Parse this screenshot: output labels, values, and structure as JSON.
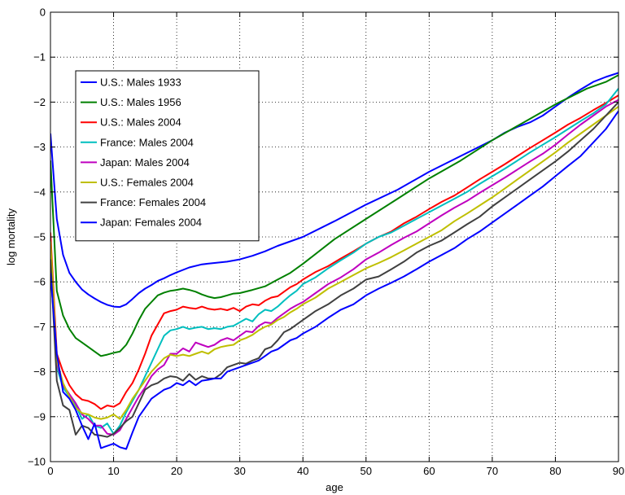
{
  "chart_data": {
    "type": "line",
    "title": "",
    "xlabel": "age",
    "ylabel": "log mortality",
    "xlim": [
      0,
      90
    ],
    "ylim": [
      -10,
      0
    ],
    "xticks": [
      0,
      10,
      20,
      30,
      40,
      50,
      60,
      70,
      80,
      90
    ],
    "yticks": [
      0,
      -1,
      -2,
      -3,
      -4,
      -5,
      -6,
      -7,
      -8,
      -9,
      -10
    ],
    "grid": true,
    "legend_position": "top-left",
    "series": [
      {
        "name": "U.S.: Males 1933",
        "color": "#0000ff",
        "x": [
          0,
          1,
          2,
          3,
          4,
          5,
          6,
          7,
          8,
          9,
          10,
          11,
          12,
          13,
          14,
          15,
          16,
          17,
          18,
          19,
          20,
          22,
          24,
          26,
          28,
          30,
          32,
          34,
          36,
          38,
          40,
          45,
          50,
          55,
          60,
          65,
          70,
          72,
          74,
          76,
          78,
          80,
          82,
          84,
          86,
          88,
          90
        ],
        "y": [
          -2.7,
          -4.6,
          -5.4,
          -5.8,
          -6.0,
          -6.17,
          -6.28,
          -6.37,
          -6.45,
          -6.51,
          -6.55,
          -6.56,
          -6.5,
          -6.38,
          -6.25,
          -6.15,
          -6.07,
          -5.98,
          -5.92,
          -5.85,
          -5.79,
          -5.68,
          -5.61,
          -5.58,
          -5.55,
          -5.5,
          -5.42,
          -5.32,
          -5.2,
          -5.1,
          -5.0,
          -4.65,
          -4.28,
          -3.95,
          -3.55,
          -3.2,
          -2.85,
          -2.68,
          -2.55,
          -2.45,
          -2.3,
          -2.1,
          -1.9,
          -1.72,
          -1.55,
          -1.44,
          -1.35
        ]
      },
      {
        "name": "U.S.: Males 1956",
        "color": "#008000",
        "x": [
          0,
          1,
          2,
          3,
          4,
          5,
          6,
          7,
          8,
          9,
          10,
          11,
          12,
          13,
          14,
          15,
          16,
          17,
          18,
          19,
          20,
          21,
          22,
          23,
          24,
          25,
          26,
          27,
          28,
          29,
          30,
          32,
          34,
          36,
          38,
          40,
          45,
          50,
          55,
          60,
          65,
          70,
          75,
          80,
          85,
          88,
          90
        ],
        "y": [
          -3.3,
          -6.2,
          -6.75,
          -7.05,
          -7.25,
          -7.35,
          -7.45,
          -7.55,
          -7.65,
          -7.62,
          -7.58,
          -7.55,
          -7.4,
          -7.15,
          -6.85,
          -6.6,
          -6.45,
          -6.3,
          -6.24,
          -6.2,
          -6.18,
          -6.15,
          -6.18,
          -6.22,
          -6.28,
          -6.33,
          -6.36,
          -6.34,
          -6.3,
          -6.26,
          -6.25,
          -6.18,
          -6.1,
          -5.95,
          -5.8,
          -5.6,
          -5.05,
          -4.6,
          -4.15,
          -3.7,
          -3.3,
          -2.85,
          -2.45,
          -2.05,
          -1.7,
          -1.55,
          -1.4
        ]
      },
      {
        "name": "U.S.: Males 2004",
        "color": "#ff0000",
        "x": [
          0,
          1,
          2,
          3,
          4,
          5,
          6,
          7,
          8,
          9,
          10,
          11,
          12,
          13,
          14,
          15,
          16,
          17,
          18,
          19,
          20,
          21,
          22,
          23,
          24,
          25,
          26,
          27,
          28,
          29,
          30,
          31,
          32,
          33,
          34,
          35,
          36,
          37,
          38,
          39,
          40,
          42,
          44,
          46,
          48,
          50,
          52,
          54,
          56,
          58,
          60,
          62,
          64,
          66,
          68,
          70,
          72,
          74,
          76,
          78,
          80,
          82,
          84,
          86,
          88,
          90
        ],
        "y": [
          -4.9,
          -7.6,
          -8.0,
          -8.3,
          -8.5,
          -8.62,
          -8.65,
          -8.72,
          -8.83,
          -8.75,
          -8.78,
          -8.7,
          -8.45,
          -8.25,
          -7.95,
          -7.6,
          -7.2,
          -6.95,
          -6.7,
          -6.65,
          -6.62,
          -6.55,
          -6.58,
          -6.6,
          -6.55,
          -6.6,
          -6.62,
          -6.6,
          -6.63,
          -6.58,
          -6.65,
          -6.55,
          -6.5,
          -6.52,
          -6.42,
          -6.35,
          -6.32,
          -6.22,
          -6.12,
          -6.05,
          -5.95,
          -5.78,
          -5.65,
          -5.48,
          -5.32,
          -5.15,
          -5.0,
          -4.88,
          -4.7,
          -4.55,
          -4.38,
          -4.22,
          -4.08,
          -3.9,
          -3.72,
          -3.55,
          -3.38,
          -3.2,
          -3.02,
          -2.85,
          -2.68,
          -2.5,
          -2.35,
          -2.18,
          -2.02,
          -1.85
        ]
      },
      {
        "name": "France: Males 2004",
        "color": "#00bfbf",
        "x": [
          0,
          1,
          2,
          3,
          4,
          5,
          6,
          7,
          8,
          9,
          10,
          11,
          12,
          13,
          14,
          15,
          16,
          17,
          18,
          19,
          20,
          21,
          22,
          23,
          24,
          25,
          26,
          27,
          28,
          29,
          30,
          31,
          32,
          33,
          34,
          35,
          36,
          37,
          38,
          39,
          40,
          42,
          44,
          46,
          48,
          50,
          52,
          54,
          56,
          58,
          60,
          62,
          64,
          66,
          68,
          70,
          72,
          74,
          76,
          78,
          80,
          82,
          84,
          86,
          88,
          90
        ],
        "y": [
          -5.2,
          -7.9,
          -8.35,
          -8.55,
          -8.75,
          -9.05,
          -8.95,
          -9.2,
          -9.25,
          -9.15,
          -9.38,
          -9.2,
          -8.9,
          -8.65,
          -8.4,
          -8.1,
          -7.8,
          -7.5,
          -7.2,
          -7.08,
          -7.05,
          -7.0,
          -7.05,
          -7.02,
          -7.0,
          -7.05,
          -7.03,
          -7.05,
          -7.0,
          -6.98,
          -6.9,
          -6.82,
          -6.88,
          -6.72,
          -6.62,
          -6.65,
          -6.55,
          -6.42,
          -6.3,
          -6.2,
          -6.05,
          -5.9,
          -5.7,
          -5.52,
          -5.35,
          -5.15,
          -5.0,
          -4.9,
          -4.75,
          -4.6,
          -4.45,
          -4.3,
          -4.15,
          -4.0,
          -3.82,
          -3.65,
          -3.48,
          -3.3,
          -3.12,
          -2.95,
          -2.78,
          -2.6,
          -2.42,
          -2.25,
          -2.05,
          -1.7
        ]
      },
      {
        "name": "Japan: Males 2004",
        "color": "#bf00bf",
        "x": [
          0,
          1,
          2,
          3,
          4,
          5,
          6,
          7,
          8,
          9,
          10,
          11,
          12,
          13,
          14,
          15,
          16,
          17,
          18,
          19,
          20,
          21,
          22,
          23,
          24,
          25,
          26,
          27,
          28,
          29,
          30,
          31,
          32,
          33,
          34,
          35,
          36,
          37,
          38,
          39,
          40,
          42,
          44,
          46,
          48,
          50,
          52,
          54,
          56,
          58,
          60,
          62,
          64,
          66,
          68,
          70,
          72,
          74,
          76,
          78,
          80,
          82,
          84,
          86,
          88,
          90
        ],
        "y": [
          -5.3,
          -7.8,
          -8.3,
          -8.5,
          -8.7,
          -8.95,
          -9.05,
          -9.2,
          -9.2,
          -9.38,
          -9.4,
          -9.3,
          -9.05,
          -8.8,
          -8.55,
          -8.35,
          -8.1,
          -7.95,
          -7.85,
          -7.6,
          -7.6,
          -7.48,
          -7.55,
          -7.35,
          -7.4,
          -7.45,
          -7.4,
          -7.3,
          -7.25,
          -7.3,
          -7.2,
          -7.1,
          -7.12,
          -6.98,
          -6.9,
          -6.92,
          -6.8,
          -6.7,
          -6.6,
          -6.52,
          -6.45,
          -6.25,
          -6.05,
          -5.9,
          -5.72,
          -5.5,
          -5.35,
          -5.18,
          -5.02,
          -4.88,
          -4.7,
          -4.52,
          -4.35,
          -4.2,
          -4.02,
          -3.85,
          -3.68,
          -3.5,
          -3.32,
          -3.15,
          -2.95,
          -2.72,
          -2.5,
          -2.3,
          -2.1,
          -1.95
        ]
      },
      {
        "name": "U.S.: Females 2004",
        "color": "#bfbf00",
        "x": [
          0,
          1,
          2,
          3,
          4,
          5,
          6,
          7,
          8,
          9,
          10,
          11,
          12,
          13,
          14,
          15,
          16,
          17,
          18,
          19,
          20,
          21,
          22,
          23,
          24,
          25,
          26,
          27,
          28,
          29,
          30,
          31,
          32,
          33,
          34,
          35,
          36,
          37,
          38,
          39,
          40,
          42,
          44,
          46,
          48,
          50,
          52,
          54,
          56,
          58,
          60,
          62,
          64,
          66,
          68,
          70,
          72,
          74,
          76,
          78,
          80,
          82,
          84,
          86,
          88,
          90
        ],
        "y": [
          -5.1,
          -7.75,
          -8.25,
          -8.55,
          -8.8,
          -8.92,
          -8.95,
          -9.02,
          -9.05,
          -9.02,
          -8.95,
          -9.05,
          -8.85,
          -8.6,
          -8.4,
          -8.2,
          -8.0,
          -7.85,
          -7.7,
          -7.62,
          -7.65,
          -7.62,
          -7.65,
          -7.6,
          -7.55,
          -7.6,
          -7.5,
          -7.45,
          -7.42,
          -7.4,
          -7.3,
          -7.25,
          -7.18,
          -7.08,
          -7.0,
          -6.95,
          -6.85,
          -6.78,
          -6.68,
          -6.6,
          -6.5,
          -6.35,
          -6.15,
          -6.0,
          -5.85,
          -5.7,
          -5.58,
          -5.45,
          -5.3,
          -5.15,
          -5.0,
          -4.85,
          -4.65,
          -4.48,
          -4.3,
          -4.12,
          -3.92,
          -3.72,
          -3.52,
          -3.32,
          -3.12,
          -2.9,
          -2.7,
          -2.5,
          -2.3,
          -2.1
        ]
      },
      {
        "name": "France: Females 2004",
        "color": "#404040",
        "x": [
          0,
          1,
          2,
          3,
          4,
          5,
          6,
          7,
          8,
          9,
          10,
          11,
          12,
          13,
          14,
          15,
          16,
          17,
          18,
          19,
          20,
          21,
          22,
          23,
          24,
          25,
          26,
          27,
          28,
          29,
          30,
          31,
          32,
          33,
          34,
          35,
          36,
          37,
          38,
          39,
          40,
          42,
          44,
          46,
          48,
          50,
          52,
          54,
          56,
          58,
          60,
          62,
          64,
          66,
          68,
          70,
          72,
          74,
          76,
          78,
          80,
          82,
          84,
          86,
          88,
          90
        ],
        "y": [
          -5.5,
          -8.2,
          -8.75,
          -8.85,
          -9.4,
          -9.2,
          -9.25,
          -9.4,
          -9.42,
          -9.45,
          -9.38,
          -9.25,
          -9.1,
          -9.0,
          -8.7,
          -8.4,
          -8.3,
          -8.25,
          -8.15,
          -8.1,
          -8.12,
          -8.2,
          -8.05,
          -8.18,
          -8.1,
          -8.15,
          -8.15,
          -8.05,
          -7.9,
          -7.85,
          -7.8,
          -7.82,
          -7.75,
          -7.7,
          -7.5,
          -7.45,
          -7.3,
          -7.12,
          -7.05,
          -6.95,
          -6.85,
          -6.65,
          -6.5,
          -6.3,
          -6.15,
          -5.95,
          -5.88,
          -5.72,
          -5.55,
          -5.35,
          -5.2,
          -5.08,
          -4.9,
          -4.72,
          -4.55,
          -4.32,
          -4.12,
          -3.92,
          -3.72,
          -3.52,
          -3.32,
          -3.1,
          -2.85,
          -2.6,
          -2.3,
          -2.0
        ]
      },
      {
        "name": "Japan: Females 2004",
        "color": "#0000ff",
        "x": [
          0,
          1,
          2,
          3,
          4,
          5,
          6,
          7,
          8,
          9,
          10,
          11,
          12,
          13,
          14,
          15,
          16,
          17,
          18,
          19,
          20,
          21,
          22,
          23,
          24,
          25,
          26,
          27,
          28,
          29,
          30,
          31,
          32,
          33,
          34,
          35,
          36,
          37,
          38,
          39,
          40,
          42,
          44,
          46,
          48,
          50,
          52,
          54,
          56,
          58,
          60,
          62,
          64,
          66,
          68,
          70,
          72,
          74,
          76,
          78,
          80,
          82,
          84,
          86,
          88,
          90
        ],
        "y": [
          -5.8,
          -7.6,
          -8.45,
          -8.6,
          -8.85,
          -9.2,
          -9.5,
          -9.15,
          -9.7,
          -9.65,
          -9.6,
          -9.68,
          -9.72,
          -9.35,
          -9.0,
          -8.8,
          -8.6,
          -8.5,
          -8.4,
          -8.35,
          -8.25,
          -8.3,
          -8.2,
          -8.3,
          -8.2,
          -8.18,
          -8.15,
          -8.15,
          -8.0,
          -7.95,
          -7.9,
          -7.85,
          -7.8,
          -7.75,
          -7.65,
          -7.55,
          -7.5,
          -7.4,
          -7.3,
          -7.25,
          -7.15,
          -7.0,
          -6.8,
          -6.62,
          -6.5,
          -6.3,
          -6.15,
          -6.02,
          -5.88,
          -5.72,
          -5.55,
          -5.4,
          -5.25,
          -5.05,
          -4.88,
          -4.68,
          -4.48,
          -4.28,
          -4.08,
          -3.88,
          -3.65,
          -3.42,
          -3.2,
          -2.9,
          -2.6,
          -2.2
        ]
      }
    ]
  }
}
